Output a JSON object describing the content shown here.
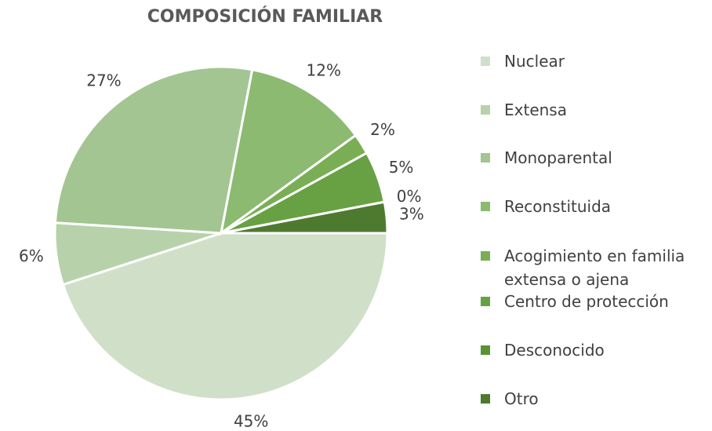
{
  "chart_data": {
    "type": "pie",
    "title": "COMPOSICIÓN FAMILIAR",
    "categories": [
      "Nuclear",
      "Extensa",
      "Monoparental",
      "Reconstituida",
      "Acogimiento en familia extensa o ajena",
      "Centro de protección",
      "Desconocido",
      "Otro"
    ],
    "values": [
      45,
      6,
      27,
      12,
      2,
      5,
      0,
      3
    ],
    "value_labels": [
      "45%",
      "6%",
      "27%",
      "12%",
      "2%",
      "5%",
      "0%",
      "3%"
    ],
    "colors": [
      "#d0e0c8",
      "#b7d2ab",
      "#a3c592",
      "#8bba70",
      "#79ae55",
      "#68a143",
      "#5b9235",
      "#4e7a30"
    ],
    "legend": "right"
  }
}
